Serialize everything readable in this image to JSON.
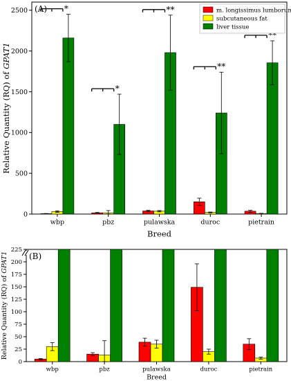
{
  "chart_data": [
    {
      "panel_label": "(A)",
      "type": "bar",
      "categories": [
        "wbp",
        "pbz",
        "pulawska",
        "duroc",
        "pietrain"
      ],
      "series": [
        {
          "name": "m. longissimus lumborum",
          "color": "#ff0000",
          "values": [
            5,
            15,
            38,
            150,
            35
          ],
          "errors": [
            2,
            4,
            8,
            45,
            12
          ]
        },
        {
          "name": "subcutaneous fat",
          "color": "#ffff00",
          "values": [
            30,
            15,
            35,
            20,
            7
          ],
          "errors": [
            9,
            28,
            8,
            5,
            2
          ]
        },
        {
          "name": "liver tissue",
          "color": "#008000",
          "values": [
            2160,
            1100,
            1980,
            1240,
            1855
          ],
          "errors": [
            290,
            370,
            460,
            500,
            270
          ]
        }
      ],
      "significance": [
        "*",
        "*",
        "**",
        "**",
        "**"
      ],
      "xlabel": "Breed",
      "ylabel_prefix": "Relative Quantity (RQ) of ",
      "ylabel_gene": "GPAT1",
      "ylim": [
        0,
        2600
      ],
      "yticks": [
        0,
        500,
        1000,
        1500,
        2000,
        2500
      ],
      "legend_position": "top-right",
      "grid": false
    },
    {
      "panel_label": "(B)",
      "type": "bar",
      "categories": [
        "wbp",
        "pbz",
        "pulawska",
        "duroc",
        "pietrain"
      ],
      "series": [
        {
          "name": "m. longissimus lumborum",
          "color": "#ff0000",
          "values": [
            5,
            15,
            39,
            149,
            35
          ],
          "errors": [
            1,
            3,
            8,
            47,
            11
          ]
        },
        {
          "name": "subcutaneous fat",
          "color": "#ffff00",
          "values": [
            30,
            13,
            35,
            20,
            7
          ],
          "errors": [
            8,
            29,
            8,
            5,
            2
          ]
        },
        {
          "name": "liver tissue",
          "color": "#008000",
          "values": [
            2160,
            1100,
            1980,
            1240,
            1855
          ],
          "errors": [
            0,
            0,
            0,
            0,
            0
          ]
        }
      ],
      "xlabel": "Breed",
      "ylabel_prefix": "Relative Quantity (RQ) of ",
      "ylabel_gene": "GPAT1",
      "ylim": [
        0,
        225
      ],
      "yticks": [
        0,
        25,
        50,
        75,
        100,
        125,
        150,
        175,
        200,
        225
      ],
      "axis_break": true,
      "grid": false
    }
  ]
}
